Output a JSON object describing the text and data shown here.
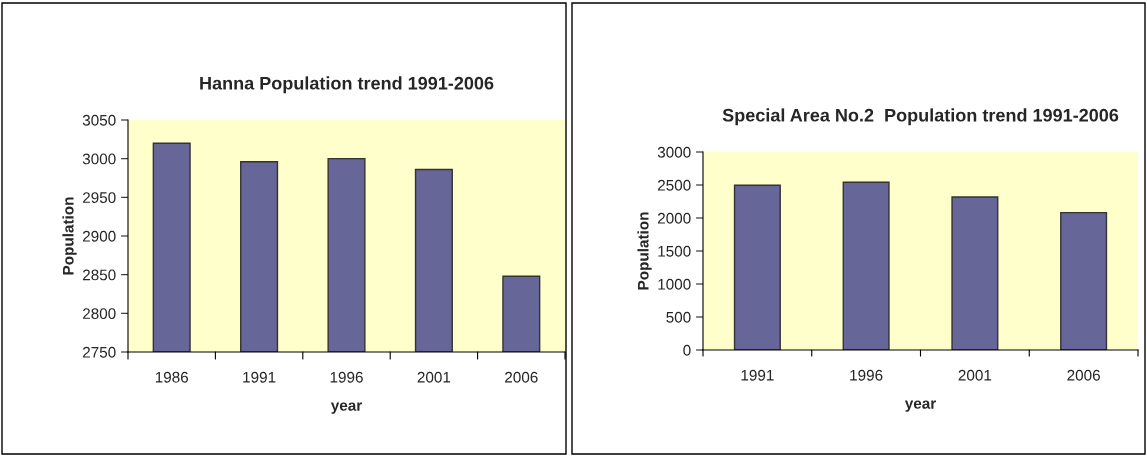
{
  "chart_data": [
    {
      "type": "bar",
      "title": "Hanna Population trend 1991-2006",
      "xlabel": "year",
      "ylabel": "Population",
      "categories": [
        "1986",
        "1991",
        "1996",
        "2001",
        "2006"
      ],
      "values": [
        3020,
        2996,
        3000,
        2986,
        2848
      ],
      "color": "#666699",
      "ylim": [
        2750,
        3050
      ],
      "yticks": [
        2750,
        2800,
        2850,
        2900,
        2950,
        3000,
        3050
      ],
      "grid": false,
      "legend": false
    },
    {
      "type": "bar",
      "title": "Special Area No.2  Population trend 1991-2006",
      "xlabel": "year",
      "ylabel": "Population",
      "categories": [
        "1991",
        "1996",
        "2001",
        "2006"
      ],
      "values": [
        2496,
        2541,
        2319,
        2082
      ],
      "color": "#666699",
      "ylim": [
        0,
        3000
      ],
      "yticks": [
        0,
        500,
        1000,
        1500,
        2000,
        2500,
        3000
      ],
      "grid": false,
      "legend": false
    }
  ]
}
